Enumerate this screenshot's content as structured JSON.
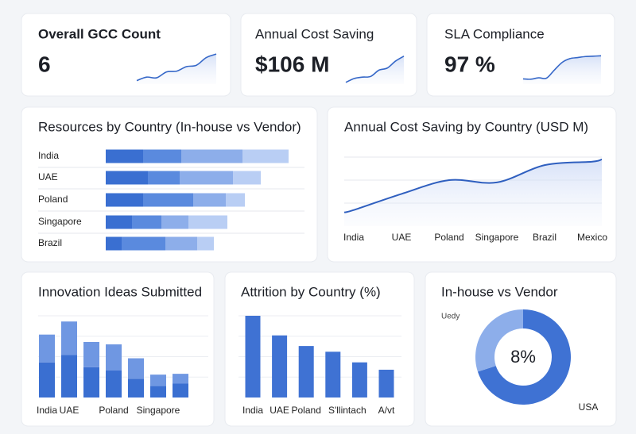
{
  "kpis": [
    {
      "title": "Overall GCC Count",
      "value": "6",
      "trend": [
        1,
        2,
        1.8,
        3.5,
        3.7,
        5,
        5.4,
        7.6,
        8.6
      ],
      "color": "#3567c8",
      "ylim": [
        0,
        10
      ]
    },
    {
      "title": "Annual Cost Saving",
      "value": "$106 M",
      "trend": [
        0.5,
        1.6,
        2,
        2.2,
        4,
        4.6,
        6.6,
        8
      ],
      "color": "#3567c8",
      "ylim": [
        0,
        10
      ]
    },
    {
      "title": "SLA Compliance",
      "value": "97 %",
      "trend": [
        1.5,
        1.4,
        1.8,
        1.7,
        4,
        6.2,
        7.3,
        7.6,
        7.9,
        8,
        8.1
      ],
      "color": "#3567c8",
      "ylim": [
        0,
        10
      ]
    }
  ],
  "chart_data": [
    {
      "type": "stacked-barh",
      "title": "Resources by Country (In-house vs Vendor)",
      "categories": [
        "India",
        "UAE",
        "Poland",
        "Singapore",
        "Brazil"
      ],
      "series": [
        {
          "color": "#3a6fd1",
          "values": [
            47,
            53,
            47,
            33,
            20
          ]
        },
        {
          "color": "#5a8ade",
          "values": [
            48,
            40,
            63,
            37,
            55
          ]
        },
        {
          "color": "#8daeea",
          "values": [
            77,
            67,
            41,
            34,
            40
          ]
        },
        {
          "color": "#b9cef4",
          "values": [
            58,
            35,
            24,
            49,
            21
          ]
        }
      ],
      "xlim": [
        0,
        250
      ]
    },
    {
      "type": "line",
      "title": "Annual Cost Saving by Country (USD M)",
      "categories": [
        "India",
        "UAE",
        "Poland",
        "Singapore",
        "Brazil",
        "Mexico"
      ],
      "values": [
        0.7,
        1.4,
        2.0,
        1.9,
        2.65,
        2.8
      ],
      "color": "#2f5fbf",
      "ylim": [
        0,
        3
      ],
      "yticks": [
        1,
        2,
        3
      ],
      "grid": true
    },
    {
      "type": "stacked-bar",
      "title": "Innovation Ideas Submitted",
      "categories": [
        "India",
        "UAE",
        null,
        "Poland",
        null,
        "Singapore",
        null
      ],
      "series": [
        {
          "color": "#3a6fd1",
          "values": [
            43,
            52,
            37,
            33,
            23,
            14,
            17
          ]
        },
        {
          "color": "#6f97e2",
          "values": [
            34,
            41,
            31,
            32,
            25,
            14,
            12
          ]
        }
      ],
      "ylim": [
        0,
        100
      ],
      "yticks": [
        25,
        50,
        75,
        100
      ],
      "grid": true
    },
    {
      "type": "bar",
      "title": "Attrition by Country (%)",
      "categories": [
        "India",
        "UAE",
        "Poland",
        "S'llintach",
        null,
        "A/vt"
      ],
      "values": [
        100,
        76,
        63,
        56,
        43,
        34
      ],
      "color": "#3f72d3",
      "ylim": [
        0,
        100
      ],
      "yticks": [
        25,
        50,
        75,
        100
      ],
      "grid": true
    },
    {
      "type": "donut",
      "title": "In-house vs Vendor",
      "categories": [
        "USA",
        "Uedy"
      ],
      "values": [
        70,
        30
      ],
      "colors": [
        "#3f72d3",
        "#8daeea"
      ],
      "center_label": "8%"
    }
  ]
}
